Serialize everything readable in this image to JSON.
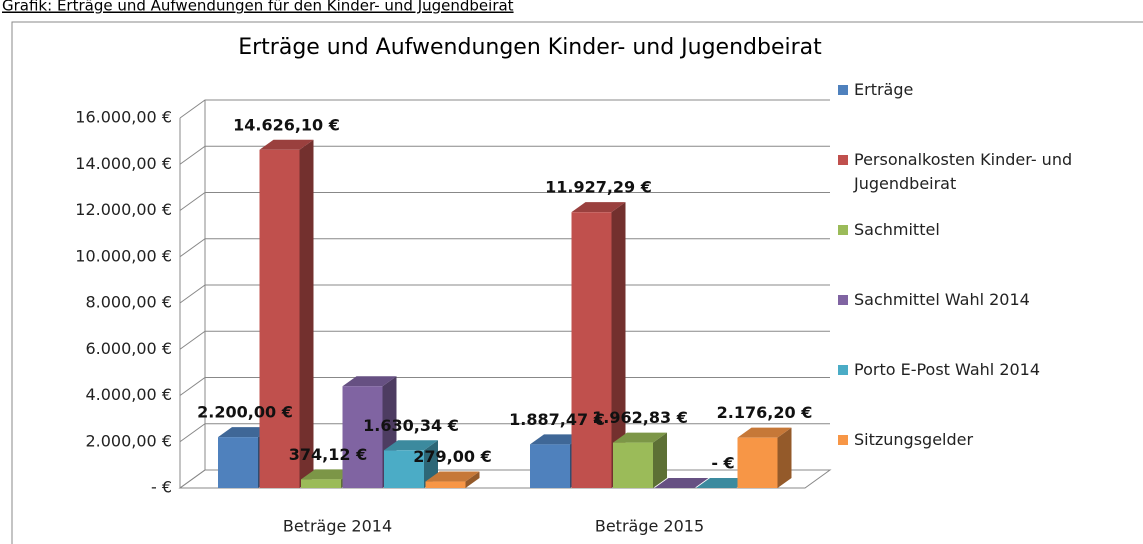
{
  "caption": "Grafik: Erträge und Aufwendungen für den Kinder- und Jugendbeirat",
  "chart_data": {
    "type": "bar3d",
    "title": "Erträge und Aufwendungen Kinder- und Jugendbeirat",
    "categories": [
      "Beträge 2014",
      "Beträge 2015"
    ],
    "series": [
      {
        "name": "Erträge",
        "color": "#4f81bd",
        "values": [
          2200.0,
          1887.47
        ],
        "value_labels": [
          "2.200,00 €",
          "1.887,47 €"
        ]
      },
      {
        "name": "Personalkosten Kinder- und Jugendbeirat",
        "color": "#c0504d",
        "values": [
          14626.1,
          11927.29
        ],
        "value_labels": [
          "14.626,10 €",
          "11.927,29 €"
        ]
      },
      {
        "name": "Sachmittel",
        "color": "#9bbb59",
        "values": [
          374.12,
          1962.83
        ],
        "value_labels": [
          "374,12 €",
          "1.962,83 €"
        ]
      },
      {
        "name": "Sachmittel Wahl 2014",
        "color": "#8064a2",
        "values": [
          4400,
          0
        ],
        "value_labels": [
          null,
          null
        ]
      },
      {
        "name": "Porto E-Post Wahl 2014",
        "color": "#4bacc6",
        "values": [
          1630.34,
          0
        ],
        "value_labels": [
          "1.630,34 €",
          "-  €"
        ]
      },
      {
        "name": "Sitzungsgelder",
        "color": "#f79646",
        "values": [
          279.0,
          2176.2
        ],
        "value_labels": [
          "279,00 €",
          "2.176,20 €"
        ]
      }
    ],
    "ylim": [
      0,
      16000
    ],
    "yticks": [
      {
        "value": 0,
        "label": "-  €"
      },
      {
        "value": 2000,
        "label": "2.000,00 €"
      },
      {
        "value": 4000,
        "label": "4.000,00 €"
      },
      {
        "value": 6000,
        "label": "6.000,00 €"
      },
      {
        "value": 8000,
        "label": "8.000,00 €"
      },
      {
        "value": 10000,
        "label": "10.000,00 €"
      },
      {
        "value": 12000,
        "label": "12.000,00 €"
      },
      {
        "value": 14000,
        "label": "14.000,00 €"
      },
      {
        "value": 16000,
        "label": "16.000,00 €"
      }
    ],
    "grid": true,
    "legend": "right"
  }
}
